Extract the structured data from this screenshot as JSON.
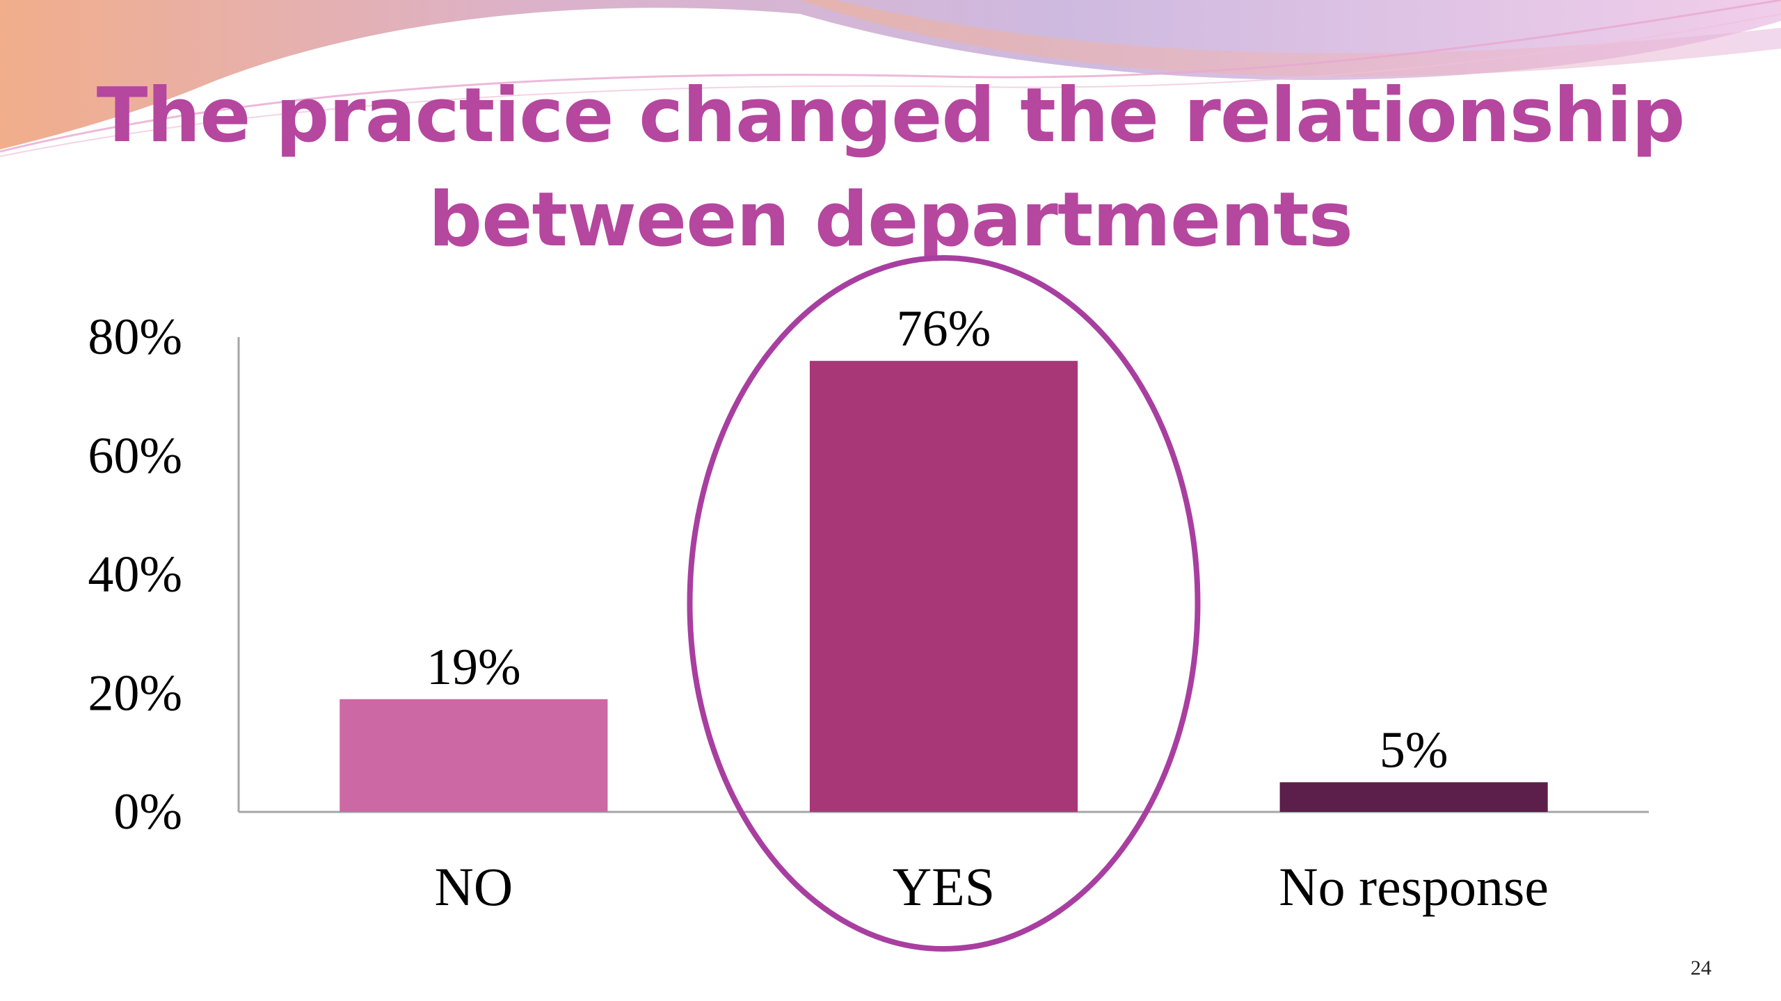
{
  "slide": {
    "title_line1": "The practice changed the relationship",
    "title_line2": "between departments",
    "page_number": "24"
  },
  "colors": {
    "title": "#b5479f",
    "highlight_ellipse": "#a83fa0",
    "axis": "#a6a6a6"
  },
  "chart_data": {
    "type": "bar",
    "title": "",
    "xlabel": "",
    "ylabel": "",
    "categories": [
      "NO",
      "YES",
      "No response"
    ],
    "values": [
      19,
      76,
      5
    ],
    "data_labels": [
      "19%",
      "76%",
      "5%"
    ],
    "bar_colors": [
      "#cc68a4",
      "#a83778",
      "#5c1e4a"
    ],
    "ylim": [
      0,
      80
    ],
    "yticks": [
      0,
      20,
      40,
      60,
      80
    ],
    "ytick_labels": [
      "0%",
      "20%",
      "40%",
      "60%",
      "80%"
    ],
    "grid": false,
    "legend": "none",
    "highlighted_category": "YES"
  }
}
